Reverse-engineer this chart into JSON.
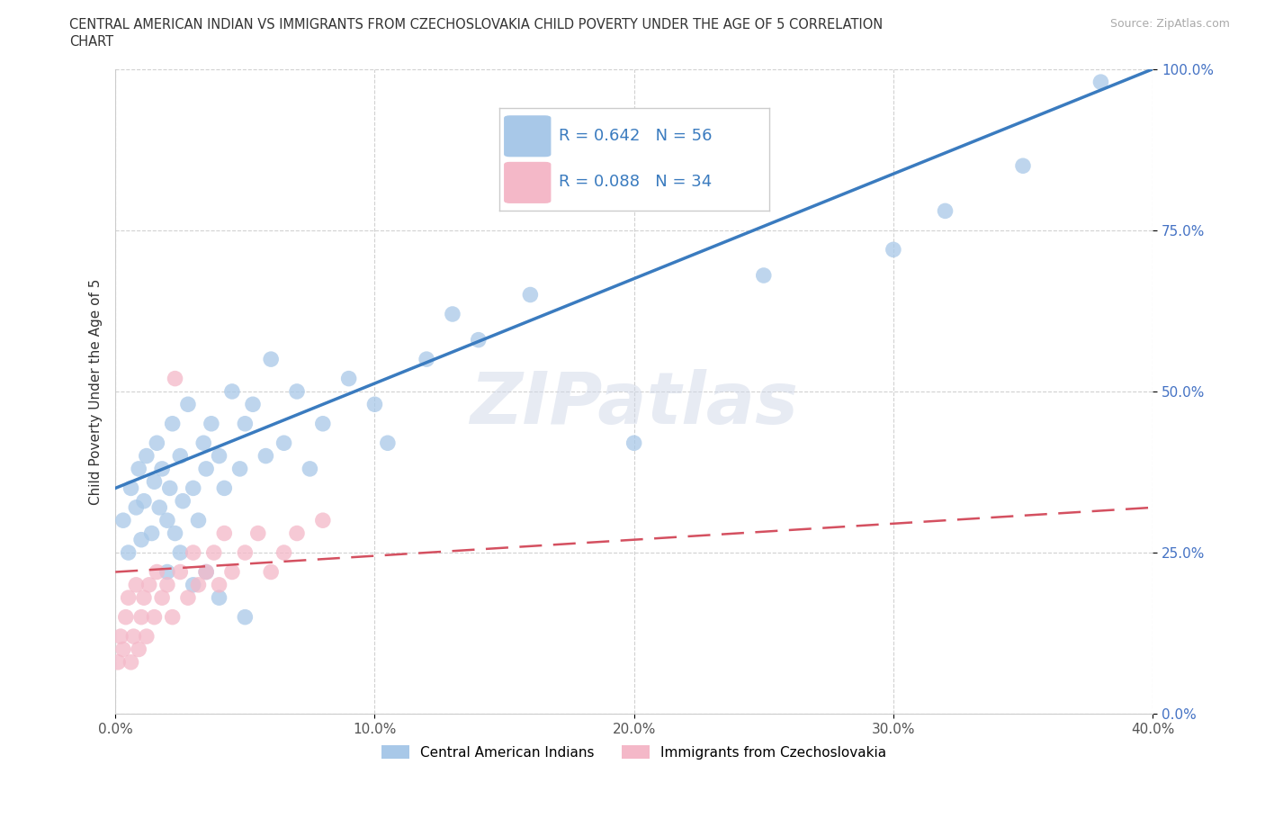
{
  "title_line1": "CENTRAL AMERICAN INDIAN VS IMMIGRANTS FROM CZECHOSLOVAKIA CHILD POVERTY UNDER THE AGE OF 5 CORRELATION",
  "title_line2": "CHART",
  "source": "Source: ZipAtlas.com",
  "ylabel": "Child Poverty Under the Age of 5",
  "xlim": [
    0.0,
    40.0
  ],
  "ylim": [
    0.0,
    100.0
  ],
  "xticks": [
    0.0,
    10.0,
    20.0,
    30.0,
    40.0
  ],
  "yticks": [
    0.0,
    25.0,
    50.0,
    75.0,
    100.0
  ],
  "xtick_labels": [
    "0.0%",
    "10.0%",
    "20.0%",
    "30.0%",
    "40.0%"
  ],
  "ytick_labels": [
    "0.0%",
    "25.0%",
    "50.0%",
    "75.0%",
    "100.0%"
  ],
  "blue_color": "#a8c8e8",
  "pink_color": "#f4b8c8",
  "blue_line_color": "#3a7bbf",
  "pink_line_color": "#d45060",
  "R_blue": 0.642,
  "N_blue": 56,
  "R_pink": 0.088,
  "N_pink": 34,
  "legend_label_blue": "Central American Indians",
  "legend_label_pink": "Immigrants from Czechoslovakia",
  "watermark": "ZIPatlas",
  "blue_x": [
    0.3,
    0.5,
    0.6,
    0.8,
    0.9,
    1.0,
    1.1,
    1.2,
    1.4,
    1.5,
    1.6,
    1.7,
    1.8,
    2.0,
    2.1,
    2.2,
    2.3,
    2.5,
    2.6,
    2.8,
    3.0,
    3.2,
    3.4,
    3.5,
    3.7,
    4.0,
    4.2,
    4.5,
    4.8,
    5.0,
    5.3,
    5.8,
    6.0,
    6.5,
    7.0,
    7.5,
    8.0,
    9.0,
    10.0,
    10.5,
    12.0,
    13.0,
    14.0,
    16.0,
    20.0,
    25.0,
    30.0,
    32.0,
    35.0,
    38.0,
    2.0,
    2.5,
    3.0,
    3.5,
    4.0,
    5.0
  ],
  "blue_y": [
    30.0,
    25.0,
    35.0,
    32.0,
    38.0,
    27.0,
    33.0,
    40.0,
    28.0,
    36.0,
    42.0,
    32.0,
    38.0,
    30.0,
    35.0,
    45.0,
    28.0,
    40.0,
    33.0,
    48.0,
    35.0,
    30.0,
    42.0,
    38.0,
    45.0,
    40.0,
    35.0,
    50.0,
    38.0,
    45.0,
    48.0,
    40.0,
    55.0,
    42.0,
    50.0,
    38.0,
    45.0,
    52.0,
    48.0,
    42.0,
    55.0,
    62.0,
    58.0,
    65.0,
    42.0,
    68.0,
    72.0,
    78.0,
    85.0,
    98.0,
    22.0,
    25.0,
    20.0,
    22.0,
    18.0,
    15.0
  ],
  "pink_x": [
    0.1,
    0.2,
    0.3,
    0.4,
    0.5,
    0.6,
    0.7,
    0.8,
    0.9,
    1.0,
    1.1,
    1.2,
    1.3,
    1.5,
    1.6,
    1.8,
    2.0,
    2.2,
    2.5,
    2.8,
    3.0,
    3.2,
    3.5,
    3.8,
    4.0,
    4.2,
    4.5,
    5.0,
    5.5,
    6.0,
    6.5,
    7.0,
    8.0,
    2.3
  ],
  "pink_y": [
    8.0,
    12.0,
    10.0,
    15.0,
    18.0,
    8.0,
    12.0,
    20.0,
    10.0,
    15.0,
    18.0,
    12.0,
    20.0,
    15.0,
    22.0,
    18.0,
    20.0,
    15.0,
    22.0,
    18.0,
    25.0,
    20.0,
    22.0,
    25.0,
    20.0,
    28.0,
    22.0,
    25.0,
    28.0,
    22.0,
    25.0,
    28.0,
    30.0,
    52.0
  ],
  "blue_trend_x0": 0.0,
  "blue_trend_y0": 35.0,
  "blue_trend_x1": 40.0,
  "blue_trend_y1": 100.0,
  "pink_trend_x0": 0.0,
  "pink_trend_y0": 22.0,
  "pink_trend_x1": 40.0,
  "pink_trend_y1": 32.0
}
